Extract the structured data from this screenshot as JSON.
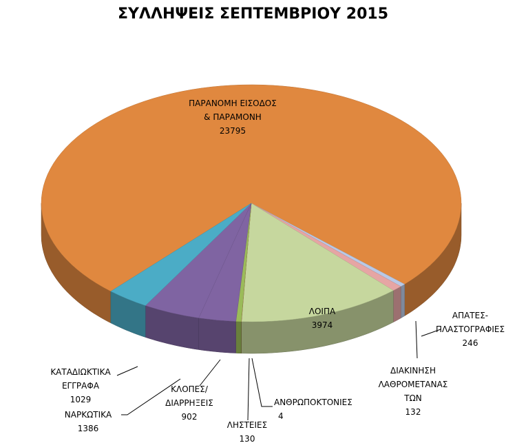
{
  "chart_data": {
    "type": "pie3d",
    "title": "ΣΥΛΛΗΨΕΙΣ ΣΕΠΤΕΜΒΡΙΟΥ 2015",
    "categories": [
      "ΠΑΡΑΝΟΜΗ ΕΙΣΟΔΟΣ & ΠΑΡΑΜΟΝΗ",
      "ΔΙΑΚΙΝΗΣΗ ΛΑΘΡΟΜΕΤΑΝΑΣΤΩΝ",
      "ΑΠΑΤΕΣ-ΠΛΑΣΤΟΓΡΑΦΙΕΣ",
      "ΛΟΙΠΑ",
      "ΑΝΘΡΩΠΟΚΤΟΝΙΕΣ",
      "ΛΗΣΤΕΙΕΣ",
      "ΚΛΟΠΕΣ/ ΔΙΑΡΡΗΞΕΙΣ",
      "ΝΑΡΚΩΤΙΚΑ",
      "ΚΑΤΑΔΙΩΚΤΙΚΑ ΕΓΓΡΑΦΑ"
    ],
    "values": [
      23795,
      132,
      246,
      3974,
      4,
      130,
      902,
      1386,
      1029
    ],
    "colors": [
      "#e0883f",
      "#b9c9e6",
      "#e6a5a4",
      "#c6d79e",
      "#c0504d",
      "#9bbb59",
      "#8064a2",
      "#7f64a2",
      "#4bacc6"
    ]
  }
}
